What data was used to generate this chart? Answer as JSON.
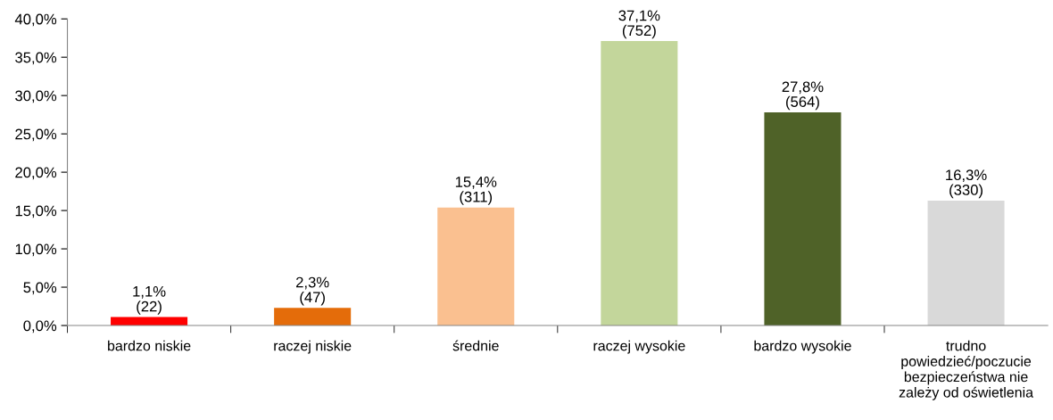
{
  "chart_data": {
    "type": "bar",
    "categories": [
      "bardzo niskie",
      "raczej niskie",
      "średnie",
      "raczej wysokie",
      "bardzo wysokie",
      "trudno\npowiedzieć/poczucie\nbezpieczeństwa nie\nzależy od oświetlenia"
    ],
    "values": [
      1.1,
      2.3,
      15.4,
      37.1,
      27.8,
      16.3
    ],
    "colors": [
      "#ff0000",
      "#e46c0a",
      "#fac090",
      "#c3d69b",
      "#4f6228",
      "#d9d9d9"
    ],
    "value_labels": [
      "1,1%\n(22)",
      "2,3%\n(47)",
      "15,4%\n(311)",
      "37,1%\n(752)",
      "27,8%\n(564)",
      "16,3%\n(330)"
    ],
    "ylim": [
      0,
      40
    ],
    "yticks": [
      {
        "value": 0,
        "label": "0,0%"
      },
      {
        "value": 5,
        "label": "5,0%"
      },
      {
        "value": 10,
        "label": "10,0%"
      },
      {
        "value": 15,
        "label": "15,0%"
      },
      {
        "value": 20,
        "label": "20,0%"
      },
      {
        "value": 25,
        "label": "25,0%"
      },
      {
        "value": 30,
        "label": "30,0%"
      },
      {
        "value": 35,
        "label": "35,0%"
      },
      {
        "value": 40,
        "label": "40,0%"
      }
    ],
    "grid": false
  }
}
